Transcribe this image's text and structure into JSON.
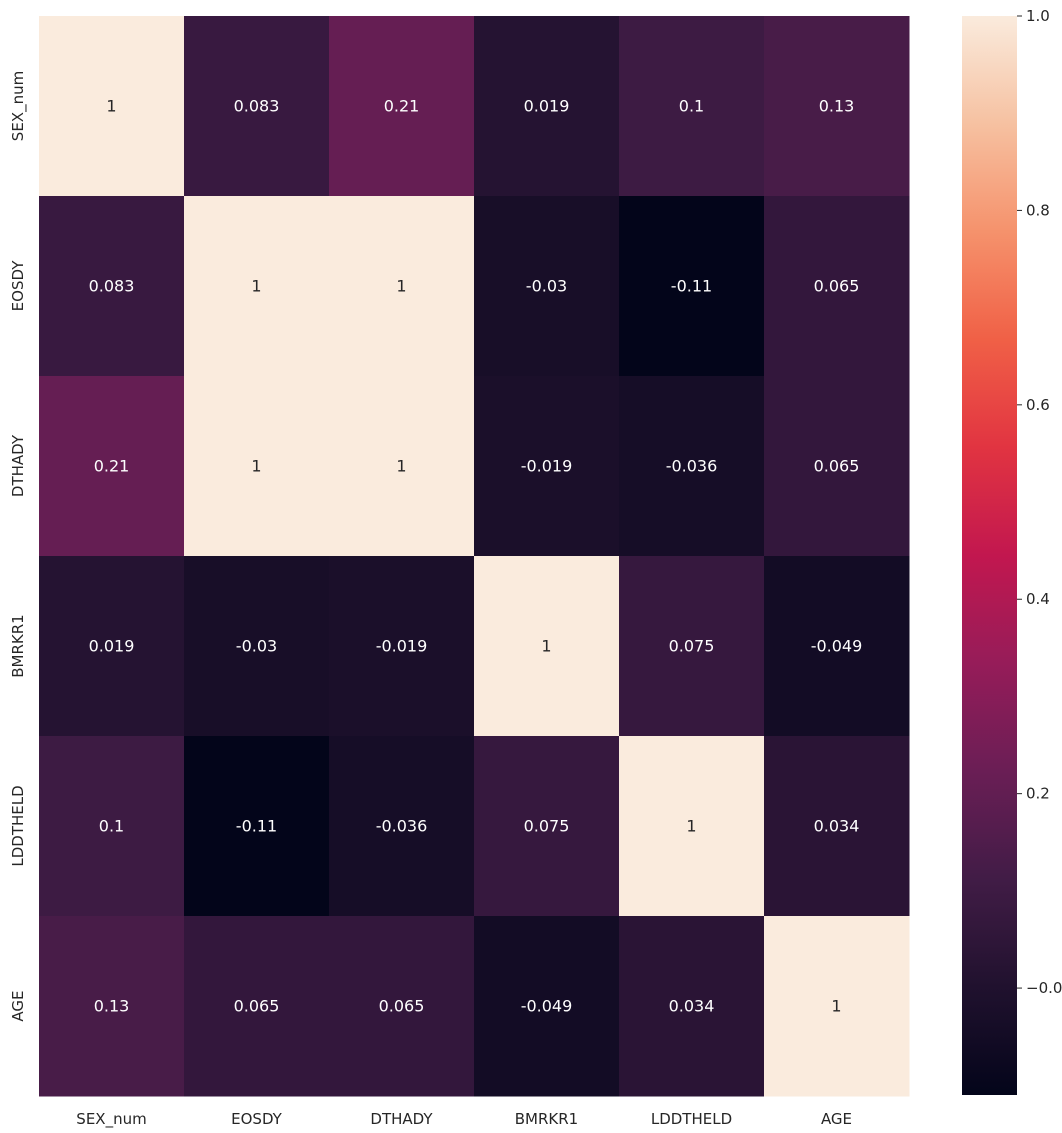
{
  "chart_data": {
    "type": "heatmap",
    "title": "",
    "xlabel": "",
    "ylabel": "",
    "x_labels": [
      "SEX_num",
      "EOSDY",
      "DTHADY",
      "BMRKR1",
      "LDDTHELD",
      "AGE"
    ],
    "y_labels": [
      "SEX_num",
      "EOSDY",
      "DTHADY",
      "BMRKR1",
      "LDDTHELD",
      "AGE"
    ],
    "values": [
      [
        1,
        0.083,
        0.21,
        0.019,
        0.1,
        0.13
      ],
      [
        0.083,
        1,
        1,
        -0.03,
        -0.11,
        0.065
      ],
      [
        0.21,
        1,
        1,
        -0.019,
        -0.036,
        0.065
      ],
      [
        0.019,
        -0.03,
        -0.019,
        1,
        0.075,
        -0.049
      ],
      [
        0.1,
        -0.11,
        -0.036,
        0.075,
        1,
        0.034
      ],
      [
        0.13,
        0.065,
        0.065,
        -0.049,
        0.034,
        1
      ]
    ],
    "annotations": [
      [
        "1",
        "0.083",
        "0.21",
        "0.019",
        "0.1",
        "0.13"
      ],
      [
        "0.083",
        "1",
        "1",
        "-0.03",
        "-0.11",
        "0.065"
      ],
      [
        "0.21",
        "1",
        "1",
        "-0.019",
        "-0.036",
        "0.065"
      ],
      [
        "0.019",
        "-0.03",
        "-0.019",
        "1",
        "0.075",
        "-0.049"
      ],
      [
        "0.1",
        "-0.11",
        "-0.036",
        "0.075",
        "1",
        "0.034"
      ],
      [
        "0.13",
        "0.065",
        "0.065",
        "-0.049",
        "0.034",
        "1"
      ]
    ],
    "colorbar": {
      "range": [
        -0.11,
        1.0
      ],
      "ticks": [
        -0.0,
        0.2,
        0.4,
        0.6,
        0.8,
        1.0
      ],
      "tick_labels": [
        "−0.0",
        "0.2",
        "0.4",
        "0.6",
        "0.8",
        "1.0"
      ],
      "colormap": "rocket",
      "placement": "right"
    },
    "grid": false,
    "legend": "none"
  }
}
